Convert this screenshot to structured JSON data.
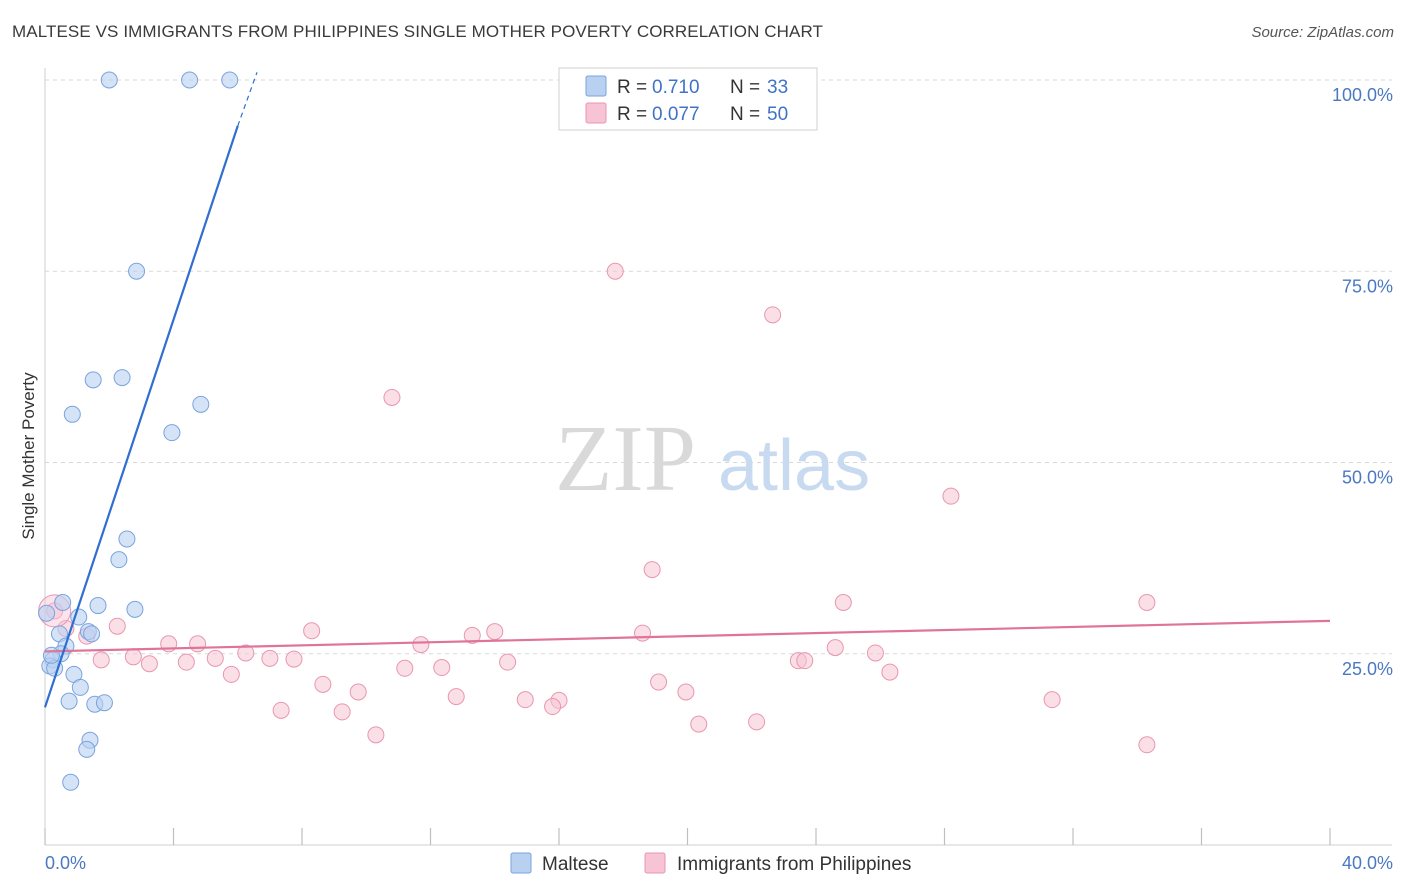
{
  "title": "MALTESE VS IMMIGRANTS FROM PHILIPPINES SINGLE MOTHER POVERTY CORRELATION CHART",
  "source": "Source: ZipAtlas.com",
  "watermark": {
    "zip": "ZIP",
    "atlas": "atlas"
  },
  "colors": {
    "maltese_fill": "#b9d1f1",
    "maltese_stroke": "#7aa3de",
    "maltese_line": "#2e6fd0",
    "phil_fill": "#f6c4d4",
    "phil_stroke": "#e996b1",
    "phil_line": "#e07399",
    "tick_text": "#4a78c2",
    "grid": "#d8d8d8"
  },
  "legend": {
    "rows": [
      {
        "r_label": "R =",
        "r_value": "0.710",
        "n_label": "N =",
        "n_value": "33",
        "series": "maltese"
      },
      {
        "r_label": "R =",
        "r_value": "0.077",
        "n_label": "N =",
        "n_value": "50",
        "series": "phil"
      }
    ]
  },
  "bottom_legend": {
    "maltese": "Maltese",
    "phil": "Immigrants from Philippines"
  },
  "chart_data": {
    "type": "scatter",
    "title": "MALTESE VS IMMIGRANTS FROM PHILIPPINES SINGLE MOTHER POVERTY CORRELATION CHART",
    "xlabel": "",
    "ylabel": "Single Mother Poverty",
    "xlim": [
      0,
      40
    ],
    "ylim": [
      0,
      100
    ],
    "x_tick_labels": [
      "0.0%",
      "40.0%"
    ],
    "y_tick_values": [
      25,
      50,
      75,
      100
    ],
    "y_tick_labels": [
      "25.0%",
      "50.0%",
      "75.0%",
      "100.0%"
    ],
    "series": [
      {
        "name": "Maltese",
        "r": 0.71,
        "n": 33,
        "trend": {
          "x0": 0.0,
          "y0": 18.0,
          "x1": 6.0,
          "y1": 94.0,
          "dash_to_x": 6.6,
          "dash_to_y": 101.0
        },
        "points": [
          {
            "x": 2.0,
            "y": 100.0
          },
          {
            "x": 4.5,
            "y": 100.0
          },
          {
            "x": 5.75,
            "y": 100.0
          },
          {
            "x": 2.85,
            "y": 75.0
          },
          {
            "x": 1.5,
            "y": 60.8
          },
          {
            "x": 2.4,
            "y": 61.1
          },
          {
            "x": 0.85,
            "y": 56.3
          },
          {
            "x": 4.85,
            "y": 57.6
          },
          {
            "x": 3.95,
            "y": 53.9
          },
          {
            "x": 2.55,
            "y": 40.0
          },
          {
            "x": 2.3,
            "y": 37.3
          },
          {
            "x": 0.55,
            "y": 31.7
          },
          {
            "x": 1.65,
            "y": 31.3
          },
          {
            "x": 2.8,
            "y": 30.8
          },
          {
            "x": 1.05,
            "y": 29.8
          },
          {
            "x": 0.45,
            "y": 27.6
          },
          {
            "x": 1.35,
            "y": 27.9
          },
          {
            "x": 1.45,
            "y": 27.6
          },
          {
            "x": 0.65,
            "y": 26.0
          },
          {
            "x": 0.5,
            "y": 25.0
          },
          {
            "x": 0.25,
            "y": 24.2
          },
          {
            "x": 0.15,
            "y": 23.4
          },
          {
            "x": 0.3,
            "y": 23.1
          },
          {
            "x": 0.9,
            "y": 22.3
          },
          {
            "x": 1.1,
            "y": 20.6
          },
          {
            "x": 0.75,
            "y": 18.8
          },
          {
            "x": 1.55,
            "y": 18.4
          },
          {
            "x": 1.85,
            "y": 18.6
          },
          {
            "x": 1.4,
            "y": 13.7
          },
          {
            "x": 1.3,
            "y": 12.5
          },
          {
            "x": 0.8,
            "y": 8.2
          },
          {
            "x": 0.05,
            "y": 30.3
          },
          {
            "x": 0.2,
            "y": 24.8
          }
        ]
      },
      {
        "name": "Immigrants from Philippines",
        "r": 0.077,
        "n": 50,
        "trend": {
          "x0": 0.0,
          "y0": 25.3,
          "x1": 40.0,
          "y1": 29.3
        },
        "points": [
          {
            "x": 17.75,
            "y": 75.0
          },
          {
            "x": 22.65,
            "y": 69.3
          },
          {
            "x": 10.8,
            "y": 58.5
          },
          {
            "x": 28.2,
            "y": 45.6
          },
          {
            "x": 18.9,
            "y": 36.0
          },
          {
            "x": 24.85,
            "y": 31.7
          },
          {
            "x": 34.3,
            "y": 31.7
          },
          {
            "x": 0.3,
            "y": 30.6
          },
          {
            "x": 0.65,
            "y": 28.3
          },
          {
            "x": 2.25,
            "y": 28.6
          },
          {
            "x": 1.3,
            "y": 27.3
          },
          {
            "x": 8.3,
            "y": 28.0
          },
          {
            "x": 13.3,
            "y": 27.4
          },
          {
            "x": 14.0,
            "y": 27.9
          },
          {
            "x": 18.6,
            "y": 27.7
          },
          {
            "x": 3.85,
            "y": 26.3
          },
          {
            "x": 4.75,
            "y": 26.3
          },
          {
            "x": 11.7,
            "y": 26.2
          },
          {
            "x": 24.6,
            "y": 25.8
          },
          {
            "x": 6.25,
            "y": 25.1
          },
          {
            "x": 25.85,
            "y": 25.1
          },
          {
            "x": 1.75,
            "y": 24.2
          },
          {
            "x": 2.75,
            "y": 24.6
          },
          {
            "x": 3.25,
            "y": 23.7
          },
          {
            "x": 4.4,
            "y": 23.9
          },
          {
            "x": 5.3,
            "y": 24.4
          },
          {
            "x": 7.0,
            "y": 24.4
          },
          {
            "x": 7.75,
            "y": 24.3
          },
          {
            "x": 14.4,
            "y": 23.9
          },
          {
            "x": 23.45,
            "y": 24.1
          },
          {
            "x": 23.65,
            "y": 24.1
          },
          {
            "x": 5.8,
            "y": 22.3
          },
          {
            "x": 11.2,
            "y": 23.1
          },
          {
            "x": 12.35,
            "y": 23.2
          },
          {
            "x": 26.3,
            "y": 22.6
          },
          {
            "x": 8.65,
            "y": 21.0
          },
          {
            "x": 9.75,
            "y": 20.0
          },
          {
            "x": 19.1,
            "y": 21.3
          },
          {
            "x": 19.95,
            "y": 20.0
          },
          {
            "x": 12.8,
            "y": 19.4
          },
          {
            "x": 14.95,
            "y": 19.0
          },
          {
            "x": 16.0,
            "y": 18.9
          },
          {
            "x": 31.35,
            "y": 19.0
          },
          {
            "x": 15.8,
            "y": 18.1
          },
          {
            "x": 7.35,
            "y": 17.6
          },
          {
            "x": 9.25,
            "y": 17.4
          },
          {
            "x": 20.35,
            "y": 15.8
          },
          {
            "x": 22.15,
            "y": 16.1
          },
          {
            "x": 10.3,
            "y": 14.4
          },
          {
            "x": 34.3,
            "y": 13.1
          }
        ]
      }
    ]
  }
}
